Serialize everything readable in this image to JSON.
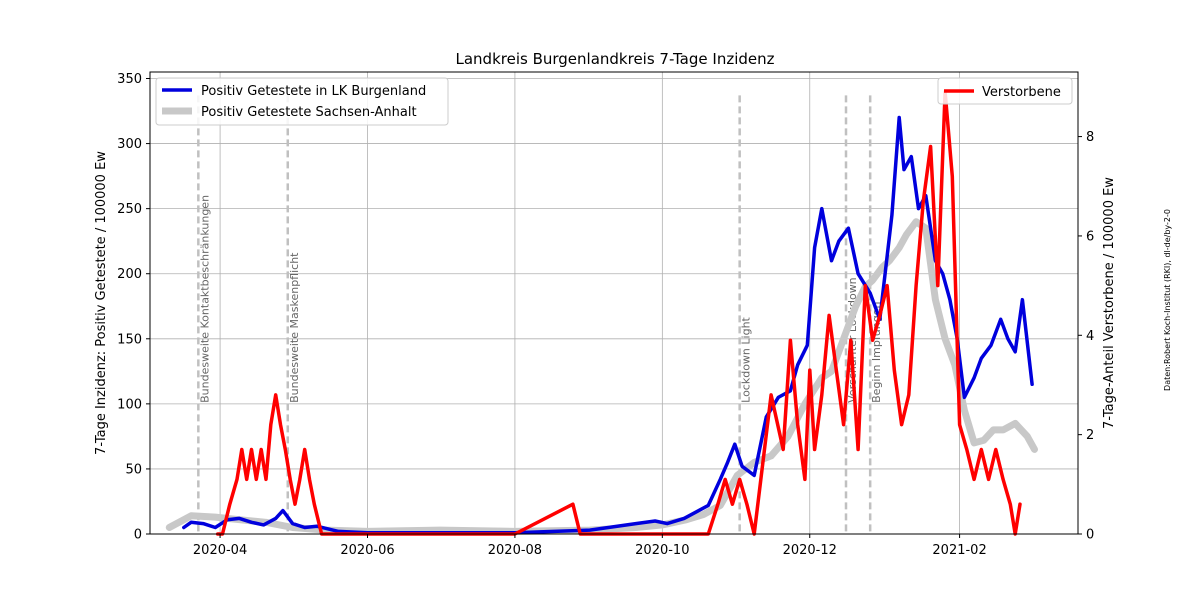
{
  "chart_data": {
    "type": "line",
    "title": "Landkreis Burgenlandkreis 7-Tage Inzidenz",
    "ylabel_left": "7-Tage Inzidenz: Positiv Getestete / 100000 Ew",
    "ylabel_right": "7-Tage-Anteil Verstorbene / 100000 Ew",
    "credit": "Daten:Robert Koch-Institut (RKI), dl-de/by-2-0",
    "xlim": [
      "2020-03-03",
      "2021-03-22"
    ],
    "ylim_left": [
      0,
      355
    ],
    "ylim_right": [
      0,
      9.3
    ],
    "x_ticks": [
      "2020-04",
      "2020-06",
      "2020-08",
      "2020-10",
      "2020-12",
      "2021-02"
    ],
    "y_ticks_left": [
      "0",
      "50",
      "100",
      "150",
      "200",
      "250",
      "300",
      "350"
    ],
    "y_ticks_right": [
      "0",
      "2",
      "4",
      "6",
      "8"
    ],
    "grid": true,
    "events": [
      {
        "date": "2020-03-23",
        "label": "Bundesweite Kontaktbeschränkungen"
      },
      {
        "date": "2020-04-29",
        "label": "Bundesweite Maskenpflicht"
      },
      {
        "date": "2020-11-02",
        "label": "Lockdown Light"
      },
      {
        "date": "2020-12-16",
        "label": "Verschärfter Lockdown"
      },
      {
        "date": "2020-12-26",
        "label": "Beginn Impfungen"
      }
    ],
    "legend_left": {
      "placement": "upper-left"
    },
    "legend_right": {
      "placement": "upper-right"
    },
    "series": [
      {
        "name": "Positiv Getestete in LK Burgenland",
        "axis": "left",
        "color": "#0000dd",
        "x": [
          "2020-03-17",
          "2020-03-20",
          "2020-03-25",
          "2020-03-30",
          "2020-04-04",
          "2020-04-09",
          "2020-04-14",
          "2020-04-19",
          "2020-04-24",
          "2020-04-27",
          "2020-05-01",
          "2020-05-06",
          "2020-05-11",
          "2020-05-20",
          "2020-06-01",
          "2020-07-01",
          "2020-08-01",
          "2020-09-01",
          "2020-09-20",
          "2020-09-28",
          "2020-10-03",
          "2020-10-10",
          "2020-10-15",
          "2020-10-20",
          "2020-10-25",
          "2020-10-28",
          "2020-10-31",
          "2020-11-03",
          "2020-11-08",
          "2020-11-13",
          "2020-11-18",
          "2020-11-23",
          "2020-11-26",
          "2020-11-30",
          "2020-12-03",
          "2020-12-06",
          "2020-12-10",
          "2020-12-13",
          "2020-12-17",
          "2020-12-21",
          "2020-12-26",
          "2020-12-30",
          "2021-01-04",
          "2021-01-07",
          "2021-01-09",
          "2021-01-12",
          "2021-01-15",
          "2021-01-18",
          "2021-01-22",
          "2021-01-25",
          "2021-01-28",
          "2021-01-31",
          "2021-02-03",
          "2021-02-07",
          "2021-02-10",
          "2021-02-14",
          "2021-02-18",
          "2021-02-21",
          "2021-02-24",
          "2021-02-27",
          "2021-03-03"
        ],
        "y": [
          5,
          9,
          8,
          5,
          11,
          12,
          9,
          7,
          12,
          18,
          8,
          5,
          6,
          2,
          1,
          1,
          1,
          3,
          8,
          10,
          8,
          12,
          17,
          22,
          42,
          55,
          69,
          52,
          45,
          90,
          105,
          110,
          130,
          145,
          220,
          250,
          210,
          225,
          235,
          200,
          185,
          165,
          245,
          320,
          280,
          290,
          250,
          260,
          210,
          200,
          180,
          150,
          105,
          120,
          135,
          145,
          165,
          150,
          140,
          180,
          115
        ]
      },
      {
        "name": "Positiv Getestete Sachsen-Anhalt",
        "axis": "left",
        "color": "#c8c8c8",
        "x": [
          "2020-03-11",
          "2020-03-20",
          "2020-03-30",
          "2020-04-09",
          "2020-04-20",
          "2020-05-01",
          "2020-05-15",
          "2020-06-01",
          "2020-07-01",
          "2020-08-01",
          "2020-09-01",
          "2020-09-20",
          "2020-10-01",
          "2020-10-11",
          "2020-10-18",
          "2020-10-25",
          "2020-11-01",
          "2020-11-08",
          "2020-11-15",
          "2020-11-22",
          "2020-11-29",
          "2020-12-06",
          "2020-12-10",
          "2020-12-13",
          "2020-12-17",
          "2020-12-20",
          "2020-12-24",
          "2020-12-27",
          "2020-12-31",
          "2021-01-03",
          "2021-01-07",
          "2021-01-10",
          "2021-01-14",
          "2021-01-18",
          "2021-01-22",
          "2021-01-26",
          "2021-01-30",
          "2021-02-03",
          "2021-02-07",
          "2021-02-11",
          "2021-02-15",
          "2021-02-19",
          "2021-02-24",
          "2021-03-01",
          "2021-03-04"
        ],
        "y": [
          5,
          14,
          13,
          11,
          9,
          5,
          3,
          2,
          3,
          2,
          3,
          5,
          7,
          11,
          15,
          22,
          45,
          55,
          60,
          75,
          100,
          120,
          125,
          140,
          160,
          175,
          190,
          195,
          205,
          210,
          220,
          230,
          240,
          235,
          180,
          150,
          130,
          95,
          70,
          72,
          80,
          80,
          85,
          75,
          65
        ]
      },
      {
        "name": "Verstorbene",
        "axis": "right",
        "color": "#ff0000",
        "x": [
          "2020-03-31",
          "2020-04-02",
          "2020-04-05",
          "2020-04-08",
          "2020-04-10",
          "2020-04-12",
          "2020-04-14",
          "2020-04-16",
          "2020-04-18",
          "2020-04-20",
          "2020-04-22",
          "2020-04-24",
          "2020-04-26",
          "2020-04-28",
          "2020-04-30",
          "2020-05-02",
          "2020-05-04",
          "2020-05-06",
          "2020-05-08",
          "2020-05-10",
          "2020-05-13",
          "2020-05-15",
          "2020-06-01",
          "2020-07-01",
          "2020-08-01",
          "2020-08-25",
          "2020-08-28",
          "2020-09-04",
          "2020-09-07",
          "2020-10-01",
          "2020-10-15",
          "2020-10-20",
          "2020-10-24",
          "2020-10-27",
          "2020-10-30",
          "2020-11-02",
          "2020-11-05",
          "2020-11-08",
          "2020-11-15",
          "2020-11-20",
          "2020-11-23",
          "2020-11-26",
          "2020-11-29",
          "2020-12-01",
          "2020-12-03",
          "2020-12-06",
          "2020-12-09",
          "2020-12-12",
          "2020-12-15",
          "2020-12-18",
          "2020-12-21",
          "2020-12-24",
          "2020-12-27",
          "2020-12-30",
          "2021-01-02",
          "2021-01-05",
          "2021-01-08",
          "2021-01-11",
          "2021-01-14",
          "2021-01-17",
          "2021-01-20",
          "2021-01-23",
          "2021-01-26",
          "2021-01-29",
          "2021-02-01",
          "2021-02-04",
          "2021-02-07",
          "2021-02-10",
          "2021-02-13",
          "2021-02-16",
          "2021-02-19",
          "2021-02-22",
          "2021-02-24",
          "2021-02-26"
        ],
        "y": [
          0,
          0,
          0.6,
          1.1,
          1.7,
          1.1,
          1.7,
          1.1,
          1.7,
          1.1,
          2.2,
          2.8,
          2.2,
          1.7,
          1.1,
          0.6,
          1.1,
          1.7,
          1.1,
          0.6,
          0,
          0,
          0,
          0,
          0,
          0.6,
          0,
          0,
          0,
          0,
          0,
          0,
          0.6,
          1.1,
          0.6,
          1.1,
          0.6,
          0,
          2.8,
          1.7,
          3.9,
          2.2,
          1.1,
          3.3,
          1.7,
          2.8,
          4.4,
          3.3,
          2.2,
          3.9,
          1.7,
          5.0,
          3.9,
          4.4,
          5.0,
          3.3,
          2.2,
          2.8,
          5.0,
          6.7,
          7.8,
          5.0,
          8.9,
          7.2,
          2.2,
          1.7,
          1.1,
          1.7,
          1.1,
          1.7,
          1.1,
          0.6,
          0,
          0.6
        ]
      }
    ]
  }
}
